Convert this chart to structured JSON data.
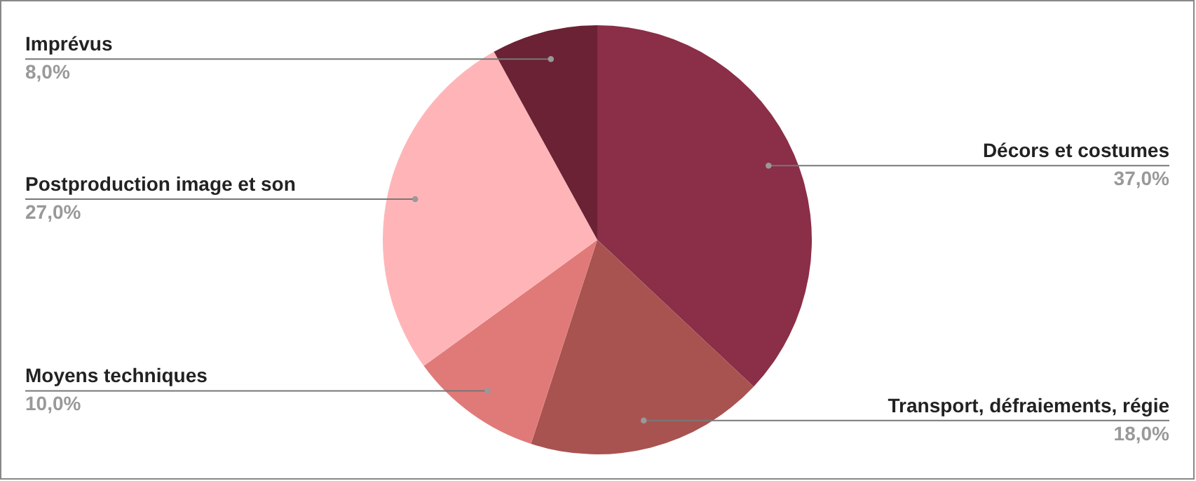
{
  "chart_data": {
    "type": "pie",
    "categories": [
      "Décors et costumes",
      "Transport, défraiements, régie",
      "Moyens techniques",
      "Postproduction image et son",
      "Imprévus"
    ],
    "values": [
      37,
      18,
      10,
      27,
      8
    ],
    "colors": [
      "#8b2e47",
      "#a85350",
      "#e07a78",
      "#ffb5b8",
      "#6b2234"
    ],
    "value_labels": [
      "37,0%",
      "18,0%",
      "10,0%",
      "27,0%",
      "8,0%"
    ],
    "legend": false
  }
}
